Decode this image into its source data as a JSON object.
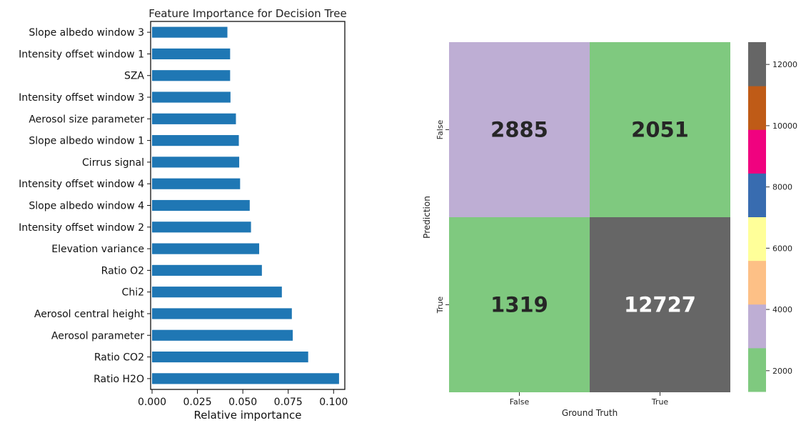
{
  "chart_data": [
    {
      "type": "bar",
      "orientation": "horizontal",
      "title": "Feature Importance for Decision Tree",
      "xlabel": "Relative importance",
      "ylabel": "",
      "xlim": [
        0,
        0.105
      ],
      "xticks": [
        "0.000",
        "0.025",
        "0.050",
        "0.075",
        "0.100"
      ],
      "bar_color": "#1f77b4",
      "categories": [
        "Slope albedo window 3",
        "Intensity offset window 1",
        "SZA",
        "Intensity offset window 3",
        "Aerosol size parameter",
        "Slope albedo window 1",
        "Cirrus signal",
        "Intensity offset window 4",
        "Slope albedo window 4",
        "Intensity offset window 2",
        "Elevation variance",
        "Ratio O2",
        "Chi2",
        "Aerosol central height",
        "Aerosol parameter",
        "Ratio CO2",
        "Ratio H2O"
      ],
      "values": [
        0.0415,
        0.043,
        0.043,
        0.0432,
        0.0462,
        0.0478,
        0.048,
        0.0485,
        0.0538,
        0.0545,
        0.059,
        0.0605,
        0.0715,
        0.077,
        0.0775,
        0.086,
        0.103
      ],
      "grid": false
    },
    {
      "type": "heatmap",
      "title": "",
      "xlabel": "Ground Truth",
      "ylabel": "Prediction",
      "x_categories": [
        "False",
        "True"
      ],
      "y_categories": [
        "False",
        "True"
      ],
      "values": [
        [
          2885,
          2051
        ],
        [
          1319,
          12727
        ]
      ],
      "annotations": [
        "2885",
        "2051",
        "1319",
        "12727"
      ],
      "colormap": "Accent",
      "colorbar": {
        "range": [
          1319,
          12727
        ],
        "ticks": [
          "2000",
          "4000",
          "6000",
          "8000",
          "10000",
          "12000"
        ],
        "colors": [
          "#7fc97f",
          "#beaed4",
          "#fdc086",
          "#ffff99",
          "#386cb0",
          "#f0027f",
          "#bf5b17",
          "#666666"
        ]
      }
    }
  ]
}
